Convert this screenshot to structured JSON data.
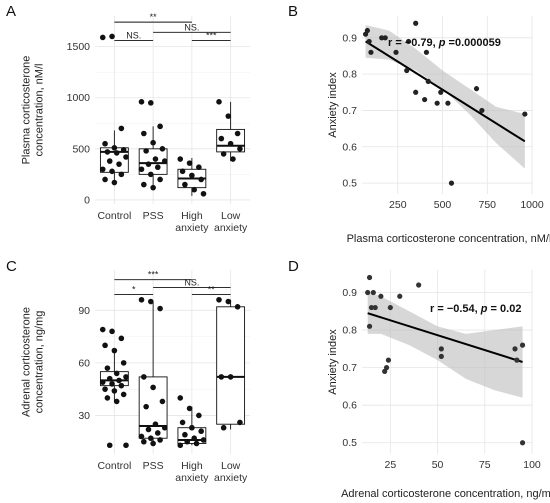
{
  "chart_data": [
    {
      "panel": "A",
      "type": "box",
      "categories": [
        "Control",
        "PSS",
        "High\nanxiety",
        "Low\nanxiety"
      ],
      "ylabel": "Plasma corticosterone\nconcentration, nM/l",
      "ylim": [
        -40,
        1800
      ],
      "yticks": [
        0,
        500,
        1000,
        1500
      ],
      "boxes": [
        {
          "category": "Control",
          "q1": 270,
          "median": 470,
          "q3": 510,
          "whisker_low": 170,
          "whisker_high": 680
        },
        {
          "category": "PSS",
          "q1": 250,
          "median": 360,
          "q3": 500,
          "whisker_low": 110,
          "whisker_high": 720
        },
        {
          "category": "High\nanxiety",
          "q1": 120,
          "median": 210,
          "q3": 300,
          "whisker_low": 40,
          "whisker_high": 410
        },
        {
          "category": "Low\nanxiety",
          "q1": 470,
          "median": 530,
          "q3": 690,
          "whisker_low": 380,
          "whisker_high": 960
        }
      ],
      "points": {
        "Control": [
          1590,
          1600,
          700,
          550,
          510,
          490,
          470,
          460,
          420,
          380,
          350,
          300,
          280,
          250,
          200,
          170
        ],
        "PSS": [
          960,
          950,
          720,
          650,
          560,
          500,
          480,
          400,
          380,
          350,
          320,
          300,
          250,
          200,
          150,
          120
        ],
        "High\nanxiety": [
          400,
          360,
          320,
          280,
          240,
          200,
          150,
          100,
          60
        ],
        "Low\nanxiety": [
          960,
          820,
          650,
          600,
          550,
          500,
          450,
          400
        ]
      },
      "significance": [
        {
          "from": 0,
          "to": 2,
          "label": "**"
        },
        {
          "from": 1,
          "to": 3,
          "label": "NS."
        },
        {
          "from": 0,
          "to": 1,
          "label": "NS."
        },
        {
          "from": 2,
          "to": 3,
          "label": "***"
        }
      ]
    },
    {
      "panel": "B",
      "type": "scatter",
      "xlabel": "Plasma corticosterone concentration, nM/l",
      "ylabel": "Anxiety index",
      "xlim": [
        50,
        1000
      ],
      "ylim": [
        0.47,
        0.96
      ],
      "xticks": [
        250,
        500,
        750,
        1000
      ],
      "yticks": [
        0.5,
        0.6,
        0.7,
        0.8,
        0.9
      ],
      "annotation": {
        "r": "r = −0.79, ",
        "p_label": "p",
        "p_value": " =0.000059"
      },
      "points": [
        [
          70,
          0.91
        ],
        [
          80,
          0.92
        ],
        [
          90,
          0.89
        ],
        [
          100,
          0.86
        ],
        [
          160,
          0.9
        ],
        [
          180,
          0.9
        ],
        [
          240,
          0.86
        ],
        [
          310,
          0.89
        ],
        [
          300,
          0.81
        ],
        [
          350,
          0.94
        ],
        [
          350,
          0.75
        ],
        [
          400,
          0.73
        ],
        [
          410,
          0.86
        ],
        [
          420,
          0.78
        ],
        [
          470,
          0.72
        ],
        [
          490,
          0.75
        ],
        [
          530,
          0.72
        ],
        [
          550,
          0.5
        ],
        [
          690,
          0.76
        ],
        [
          720,
          0.7
        ],
        [
          960,
          0.69
        ]
      ],
      "regression": {
        "x0": 70,
        "y0": 0.89,
        "x1": 960,
        "y1": 0.615
      },
      "ci": {
        "lower": [
          0.845,
          0.84,
          0.81,
          0.76,
          0.69,
          0.61,
          0.54
        ],
        "upper": [
          0.935,
          0.92,
          0.87,
          0.81,
          0.76,
          0.71,
          0.69
        ],
        "x": [
          70,
          200,
          350,
          500,
          650,
          800,
          960
        ]
      }
    },
    {
      "panel": "C",
      "type": "box",
      "categories": [
        "Control",
        "PSS",
        "High\nanxiety",
        "Low\nanxiety"
      ],
      "ylabel": "Adrenal corticosterone\nconcentration, ng/mg",
      "ylim": [
        8,
        113
      ],
      "yticks": [
        30,
        60,
        90
      ],
      "boxes": [
        {
          "category": "Control",
          "q1": 47,
          "median": 50,
          "q3": 55,
          "whisker_low": 38,
          "whisker_high": 68
        },
        {
          "category": "PSS",
          "q1": 17,
          "median": 24,
          "q3": 52,
          "whisker_low": 13,
          "whisker_high": 95
        },
        {
          "category": "High\nanxiety",
          "q1": 14,
          "median": 16,
          "q3": 23,
          "whisker_low": 13,
          "whisker_high": 35
        },
        {
          "category": "Low\nanxiety",
          "q1": 25,
          "median": 52,
          "q3": 92,
          "whisker_low": 22,
          "whisker_high": 96
        }
      ],
      "points": {
        "Control": [
          79,
          78,
          74,
          70,
          67,
          60,
          57,
          54,
          52,
          51,
          50,
          49,
          48,
          47,
          45,
          44,
          42,
          40,
          38,
          13,
          13
        ],
        "PSS": [
          96,
          95,
          91,
          52,
          46,
          38,
          35,
          25,
          23,
          22,
          20,
          18,
          17,
          16,
          15,
          14
        ],
        "High\nanxiety": [
          40,
          34,
          30,
          26,
          23,
          21,
          19,
          17,
          16,
          15,
          14,
          13
        ],
        "Low\nanxiety": [
          96,
          95,
          92,
          52,
          52,
          26,
          23
        ]
      },
      "significance": [
        {
          "from": 0,
          "to": 2,
          "label": "***"
        },
        {
          "from": 1,
          "to": 3,
          "label": "NS."
        },
        {
          "from": 0,
          "to": 1,
          "label": "*"
        },
        {
          "from": 2,
          "to": 3,
          "label": "**"
        }
      ]
    },
    {
      "panel": "D",
      "type": "scatter",
      "xlabel": "Adrenal corticosterone concentration, ng/mg",
      "ylabel": "Anxiety index",
      "xlim": [
        10,
        100
      ],
      "ylim": [
        0.47,
        0.96
      ],
      "xticks": [
        25,
        50,
        75,
        100
      ],
      "yticks": [
        0.5,
        0.6,
        0.7,
        0.8,
        0.9
      ],
      "annotation": {
        "r": "r = −0.54, ",
        "p_label": "p",
        "p_value": " = 0.02"
      },
      "points": [
        [
          13,
          0.9
        ],
        [
          14,
          0.94
        ],
        [
          14,
          0.81
        ],
        [
          15,
          0.86
        ],
        [
          16,
          0.9
        ],
        [
          17,
          0.86
        ],
        [
          20,
          0.89
        ],
        [
          22,
          0.69
        ],
        [
          23,
          0.7
        ],
        [
          24,
          0.72
        ],
        [
          25,
          0.86
        ],
        [
          30,
          0.89
        ],
        [
          40,
          0.92
        ],
        [
          52,
          0.73
        ],
        [
          52,
          0.75
        ],
        [
          91,
          0.75
        ],
        [
          92,
          0.72
        ],
        [
          95,
          0.5
        ],
        [
          95,
          0.76
        ]
      ],
      "regression": {
        "x0": 13,
        "y0": 0.845,
        "x1": 95,
        "y1": 0.715
      },
      "ci": {
        "lower": [
          0.79,
          0.79,
          0.76,
          0.72,
          0.67,
          0.64,
          0.62
        ],
        "upper": [
          0.9,
          0.89,
          0.85,
          0.81,
          0.79,
          0.8,
          0.81
        ],
        "x": [
          13,
          20,
          35,
          50,
          65,
          80,
          95
        ]
      }
    }
  ]
}
